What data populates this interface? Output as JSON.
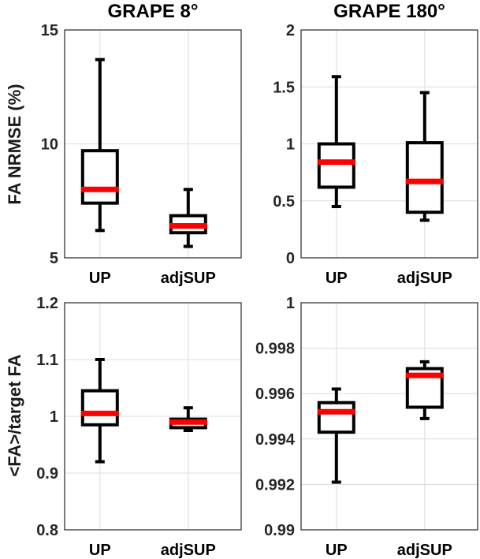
{
  "chart_data": [
    {
      "type": "box",
      "title": "GRAPE 8°",
      "ylabel": "FA NRMSE (%)",
      "ylim": [
        5,
        15
      ],
      "yticks": [
        "5",
        "10",
        "15"
      ],
      "ytick_values": [
        5,
        10,
        15
      ],
      "categories": [
        "UP",
        "adjSUP"
      ],
      "boxes": [
        {
          "min": 6.2,
          "q1": 7.4,
          "median": 8.0,
          "q3": 9.7,
          "max": 13.7
        },
        {
          "min": 5.5,
          "q1": 6.1,
          "median": 6.4,
          "q3": 6.85,
          "max": 8.0
        }
      ],
      "grid": true
    },
    {
      "type": "box",
      "title": "GRAPE 180°",
      "ylabel": "",
      "ylim": [
        0,
        2
      ],
      "yticks": [
        "0",
        "0.5",
        "1",
        "1.5",
        "2"
      ],
      "ytick_values": [
        0,
        0.5,
        1,
        1.5,
        2
      ],
      "categories": [
        "UP",
        "adjSUP"
      ],
      "boxes": [
        {
          "min": 0.45,
          "q1": 0.62,
          "median": 0.84,
          "q3": 1.0,
          "max": 1.59
        },
        {
          "min": 0.33,
          "q1": 0.4,
          "median": 0.67,
          "q3": 1.01,
          "max": 1.45
        }
      ],
      "grid": true
    },
    {
      "type": "box",
      "title": "",
      "ylabel": "<FA>/target FA",
      "ylim": [
        0.8,
        1.2
      ],
      "yticks": [
        "0.8",
        "0.9",
        "1",
        "1.1",
        "1.2"
      ],
      "ytick_values": [
        0.8,
        0.9,
        1.0,
        1.1,
        1.2
      ],
      "categories": [
        "UP",
        "adjSUP"
      ],
      "boxes": [
        {
          "min": 0.92,
          "q1": 0.985,
          "median": 1.005,
          "q3": 1.045,
          "max": 1.1
        },
        {
          "min": 0.975,
          "q1": 0.98,
          "median": 0.99,
          "q3": 0.995,
          "max": 1.015
        }
      ],
      "grid": true
    },
    {
      "type": "box",
      "title": "",
      "ylabel": "",
      "ylim": [
        0.99,
        1.0
      ],
      "yticks": [
        "0.99",
        "0.992",
        "0.994",
        "0.996",
        "0.998",
        "1"
      ],
      "ytick_values": [
        0.99,
        0.992,
        0.994,
        0.996,
        0.998,
        1.0
      ],
      "categories": [
        "UP",
        "adjSUP"
      ],
      "boxes": [
        {
          "min": 0.9921,
          "q1": 0.9943,
          "median": 0.9952,
          "q3": 0.9956,
          "max": 0.9962
        },
        {
          "min": 0.9949,
          "q1": 0.9954,
          "median": 0.9968,
          "q3": 0.9971,
          "max": 0.9974
        }
      ],
      "grid": true
    }
  ]
}
